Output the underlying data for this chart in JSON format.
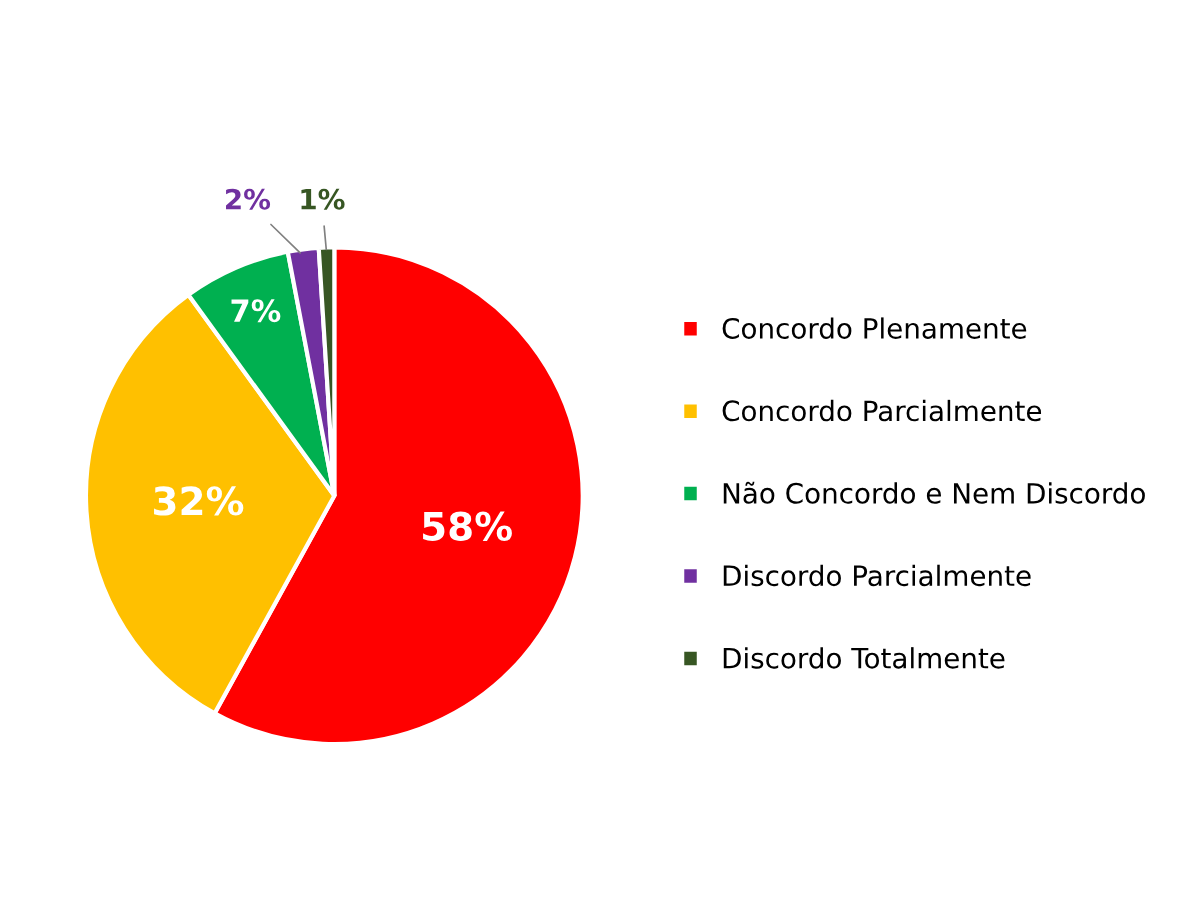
{
  "chart_data": {
    "type": "pie",
    "categories": [
      "Concordo Plenamente",
      "Concordo Parcialmente",
      "Não Concordo e Nem Discordo",
      "Discordo Parcialmente",
      "Discordo Totalmente"
    ],
    "values": [
      58,
      32,
      7,
      2,
      1
    ],
    "colors": [
      "#ff0000",
      "#ffc000",
      "#00b050",
      "#7030a0",
      "#375623"
    ],
    "value_labels": [
      "58%",
      "32%",
      "7%",
      "2%",
      "1%"
    ],
    "legend": "right"
  }
}
